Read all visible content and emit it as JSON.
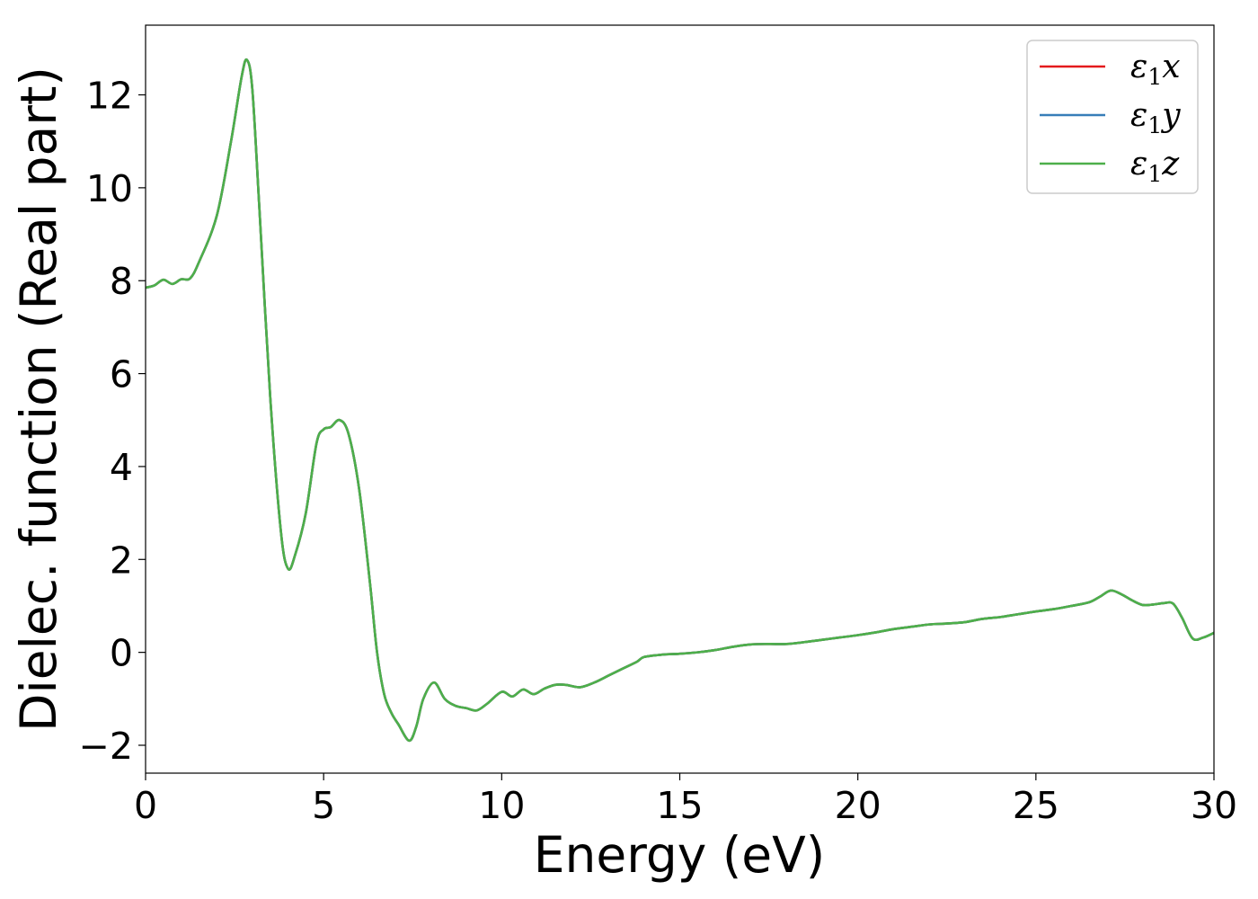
{
  "chart_data": {
    "type": "line",
    "title": "",
    "xlabel": "Energy (eV)",
    "ylabel": "Dielec. function (Real part)",
    "xlim": [
      0,
      30
    ],
    "ylim": [
      -2.6,
      13.5
    ],
    "xticks": [
      0,
      5,
      10,
      15,
      20,
      25,
      30
    ],
    "xtick_labels": [
      "0",
      "5",
      "10",
      "15",
      "20",
      "25",
      "30"
    ],
    "yticks": [
      -2,
      0,
      2,
      4,
      6,
      8,
      10,
      12
    ],
    "ytick_labels": [
      "−2",
      "0",
      "2",
      "4",
      "6",
      "8",
      "10",
      "12"
    ],
    "grid": false,
    "legend_position": "top-right",
    "x": [
      0,
      0.25,
      0.5,
      0.75,
      1.0,
      1.25,
      1.5,
      2.0,
      2.4,
      2.7,
      2.85,
      3.0,
      3.2,
      3.5,
      3.8,
      4.0,
      4.2,
      4.5,
      4.8,
      5.0,
      5.2,
      5.45,
      5.7,
      6.0,
      6.3,
      6.5,
      6.7,
      6.9,
      7.1,
      7.4,
      7.6,
      7.8,
      8.1,
      8.4,
      8.7,
      9.0,
      9.3,
      9.6,
      10.0,
      10.3,
      10.6,
      10.9,
      11.2,
      11.5,
      11.8,
      12.2,
      12.6,
      13.0,
      13.4,
      13.8,
      14.0,
      14.5,
      15.0,
      15.5,
      16.0,
      16.5,
      17.0,
      17.5,
      18.0,
      18.5,
      19.0,
      19.5,
      20.0,
      20.5,
      21.0,
      21.5,
      22.0,
      22.5,
      23.0,
      23.5,
      24.0,
      24.5,
      25.0,
      25.5,
      26.0,
      26.5,
      26.8,
      27.1,
      27.4,
      27.7,
      28.0,
      28.3,
      28.6,
      28.85,
      29.1,
      29.4,
      29.7,
      30.0
    ],
    "series": [
      {
        "name": "ε1x",
        "color": "#e41a1c",
        "values": [
          7.85,
          7.9,
          8.02,
          7.93,
          8.03,
          8.05,
          8.4,
          9.4,
          11.0,
          12.4,
          12.75,
          12.1,
          9.5,
          5.5,
          2.6,
          1.8,
          2.1,
          3.0,
          4.5,
          4.8,
          4.85,
          5.0,
          4.7,
          3.5,
          1.5,
          0.0,
          -0.9,
          -1.3,
          -1.55,
          -1.9,
          -1.6,
          -1.0,
          -0.65,
          -1.0,
          -1.15,
          -1.2,
          -1.25,
          -1.1,
          -0.85,
          -0.95,
          -0.8,
          -0.9,
          -0.78,
          -0.7,
          -0.7,
          -0.75,
          -0.65,
          -0.5,
          -0.35,
          -0.2,
          -0.1,
          -0.05,
          -0.03,
          0.0,
          0.05,
          0.12,
          0.17,
          0.18,
          0.18,
          0.22,
          0.27,
          0.32,
          0.37,
          0.43,
          0.5,
          0.55,
          0.6,
          0.62,
          0.65,
          0.72,
          0.76,
          0.82,
          0.88,
          0.93,
          1.0,
          1.08,
          1.2,
          1.33,
          1.25,
          1.12,
          1.02,
          1.03,
          1.06,
          1.05,
          0.75,
          0.3,
          0.32,
          0.42
        ]
      },
      {
        "name": "ε1y",
        "color": "#377eb8",
        "values": [
          7.85,
          7.9,
          8.02,
          7.93,
          8.03,
          8.05,
          8.4,
          9.4,
          11.0,
          12.4,
          12.75,
          12.1,
          9.5,
          5.5,
          2.6,
          1.8,
          2.1,
          3.0,
          4.5,
          4.8,
          4.85,
          5.0,
          4.7,
          3.5,
          1.5,
          0.0,
          -0.9,
          -1.3,
          -1.55,
          -1.9,
          -1.6,
          -1.0,
          -0.65,
          -1.0,
          -1.15,
          -1.2,
          -1.25,
          -1.1,
          -0.85,
          -0.95,
          -0.8,
          -0.9,
          -0.78,
          -0.7,
          -0.7,
          -0.75,
          -0.65,
          -0.5,
          -0.35,
          -0.2,
          -0.1,
          -0.05,
          -0.03,
          0.0,
          0.05,
          0.12,
          0.17,
          0.18,
          0.18,
          0.22,
          0.27,
          0.32,
          0.37,
          0.43,
          0.5,
          0.55,
          0.6,
          0.62,
          0.65,
          0.72,
          0.76,
          0.82,
          0.88,
          0.93,
          1.0,
          1.08,
          1.2,
          1.33,
          1.25,
          1.12,
          1.02,
          1.03,
          1.06,
          1.05,
          0.75,
          0.3,
          0.32,
          0.42
        ]
      },
      {
        "name": "ε1z",
        "color": "#4daf4a",
        "values": [
          7.85,
          7.9,
          8.02,
          7.93,
          8.03,
          8.05,
          8.4,
          9.4,
          11.0,
          12.4,
          12.75,
          12.1,
          9.5,
          5.5,
          2.6,
          1.8,
          2.1,
          3.0,
          4.5,
          4.8,
          4.85,
          5.0,
          4.7,
          3.5,
          1.5,
          0.0,
          -0.9,
          -1.3,
          -1.55,
          -1.9,
          -1.6,
          -1.0,
          -0.65,
          -1.0,
          -1.15,
          -1.2,
          -1.25,
          -1.1,
          -0.85,
          -0.95,
          -0.8,
          -0.9,
          -0.78,
          -0.7,
          -0.7,
          -0.75,
          -0.65,
          -0.5,
          -0.35,
          -0.2,
          -0.1,
          -0.05,
          -0.03,
          0.0,
          0.05,
          0.12,
          0.17,
          0.18,
          0.18,
          0.22,
          0.27,
          0.32,
          0.37,
          0.43,
          0.5,
          0.55,
          0.6,
          0.62,
          0.65,
          0.72,
          0.76,
          0.82,
          0.88,
          0.93,
          1.0,
          1.08,
          1.2,
          1.33,
          1.25,
          1.12,
          1.02,
          1.03,
          1.06,
          1.05,
          0.75,
          0.3,
          0.32,
          0.42
        ]
      }
    ],
    "legend": [
      {
        "symbol": "ε",
        "sub": "1",
        "axis": "x"
      },
      {
        "symbol": "ε",
        "sub": "1",
        "axis": "y"
      },
      {
        "symbol": "ε",
        "sub": "1",
        "axis": "z"
      }
    ]
  }
}
